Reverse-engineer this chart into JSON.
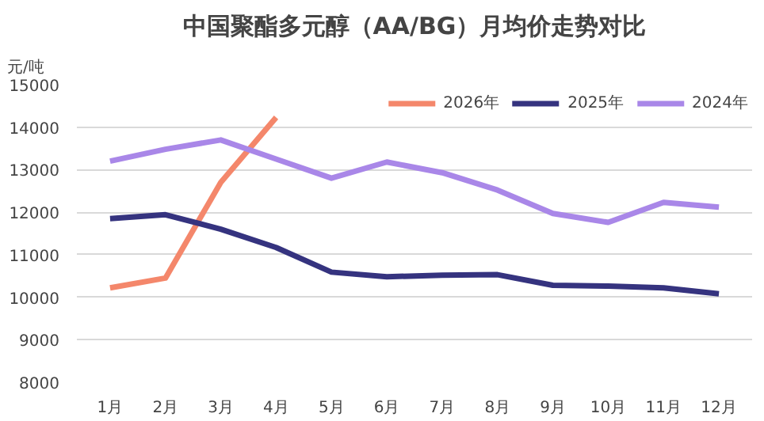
{
  "chart_data": {
    "type": "line",
    "title": "中国聚酯多元醇（AA/BG）月均价走势对比",
    "ylabel": "元/吨",
    "categories": [
      "1月",
      "2月",
      "3月",
      "4月",
      "5月",
      "6月",
      "7月",
      "8月",
      "9月",
      "10月",
      "11月",
      "12月"
    ],
    "series": [
      {
        "name": "2026年",
        "color": "#f4876b",
        "values": [
          10220,
          10450,
          12700,
          14230,
          null,
          null,
          null,
          null,
          null,
          null,
          null,
          null
        ]
      },
      {
        "name": "2025年",
        "color": "#35337f",
        "values": [
          11850,
          11940,
          11600,
          11170,
          10590,
          10480,
          10520,
          10530,
          10280,
          10260,
          10220,
          10080
        ]
      },
      {
        "name": "2024年",
        "color": "#a987e8",
        "values": [
          13200,
          13480,
          13700,
          13250,
          12800,
          13180,
          12930,
          12520,
          11970,
          11760,
          12230,
          12120
        ]
      }
    ],
    "ylim": [
      8000,
      15000
    ],
    "yticks": [
      8000,
      9000,
      10000,
      11000,
      12000,
      13000,
      14000,
      15000
    ],
    "grid": "y",
    "legend": "top right"
  }
}
